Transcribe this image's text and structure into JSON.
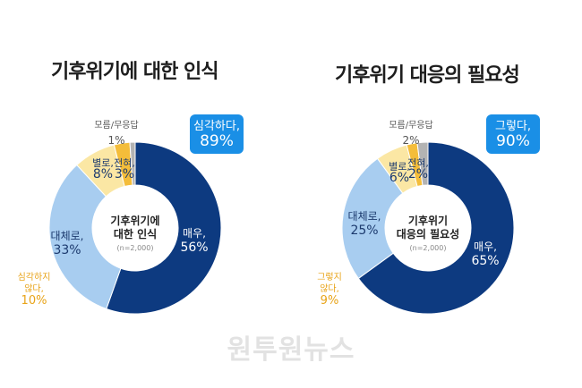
{
  "chart_data": [
    {
      "type": "donut",
      "title": "기후위기에 대한 인식",
      "center_text": [
        "기후위기에",
        "대한 인식"
      ],
      "note": "(n=2,000)",
      "highlight": {
        "label": "심각하다,",
        "value": "89%"
      },
      "slices": [
        {
          "name": "매우,",
          "value": 56,
          "value_label": "56%",
          "color": "#0d3a80"
        },
        {
          "name": "대체로,",
          "value": 33,
          "value_label": "33%",
          "color": "#a8cdf0"
        },
        {
          "name": "별로,",
          "value": 8,
          "value_label": "8%",
          "color": "#fbe7a4"
        },
        {
          "name": "전혀,",
          "value": 3,
          "value_label": "3%",
          "color": "#f4bd3a"
        },
        {
          "name": "모름/무응답",
          "value": 1,
          "value_label": "1%",
          "color": "#b3b3b3"
        }
      ],
      "group_label": {
        "line1": "심각하지",
        "line2": "않다,",
        "value": "10%"
      }
    },
    {
      "type": "donut",
      "title": "기후위기 대응의 필요성",
      "center_text": [
        "기후위기",
        "대응의 필요성"
      ],
      "note": "(n=2,000)",
      "highlight": {
        "label": "그렇다,",
        "value": "90%"
      },
      "slices": [
        {
          "name": "매우,",
          "value": 65,
          "value_label": "65%",
          "color": "#0d3a80"
        },
        {
          "name": "대체로,",
          "value": 25,
          "value_label": "25%",
          "color": "#a8cdf0"
        },
        {
          "name": "별로,",
          "value": 6,
          "value_label": "6%",
          "color": "#fbe7a4"
        },
        {
          "name": "전혀,",
          "value": 2,
          "value_label": "2%",
          "color": "#f4bd3a"
        },
        {
          "name": "모름/무응답",
          "value": 2,
          "value_label": "2%",
          "color": "#b3b3b3"
        }
      ],
      "group_label": {
        "line1": "그렇지",
        "line2": "않다,",
        "value": "9%"
      }
    }
  ],
  "watermark": "원투원뉴스"
}
